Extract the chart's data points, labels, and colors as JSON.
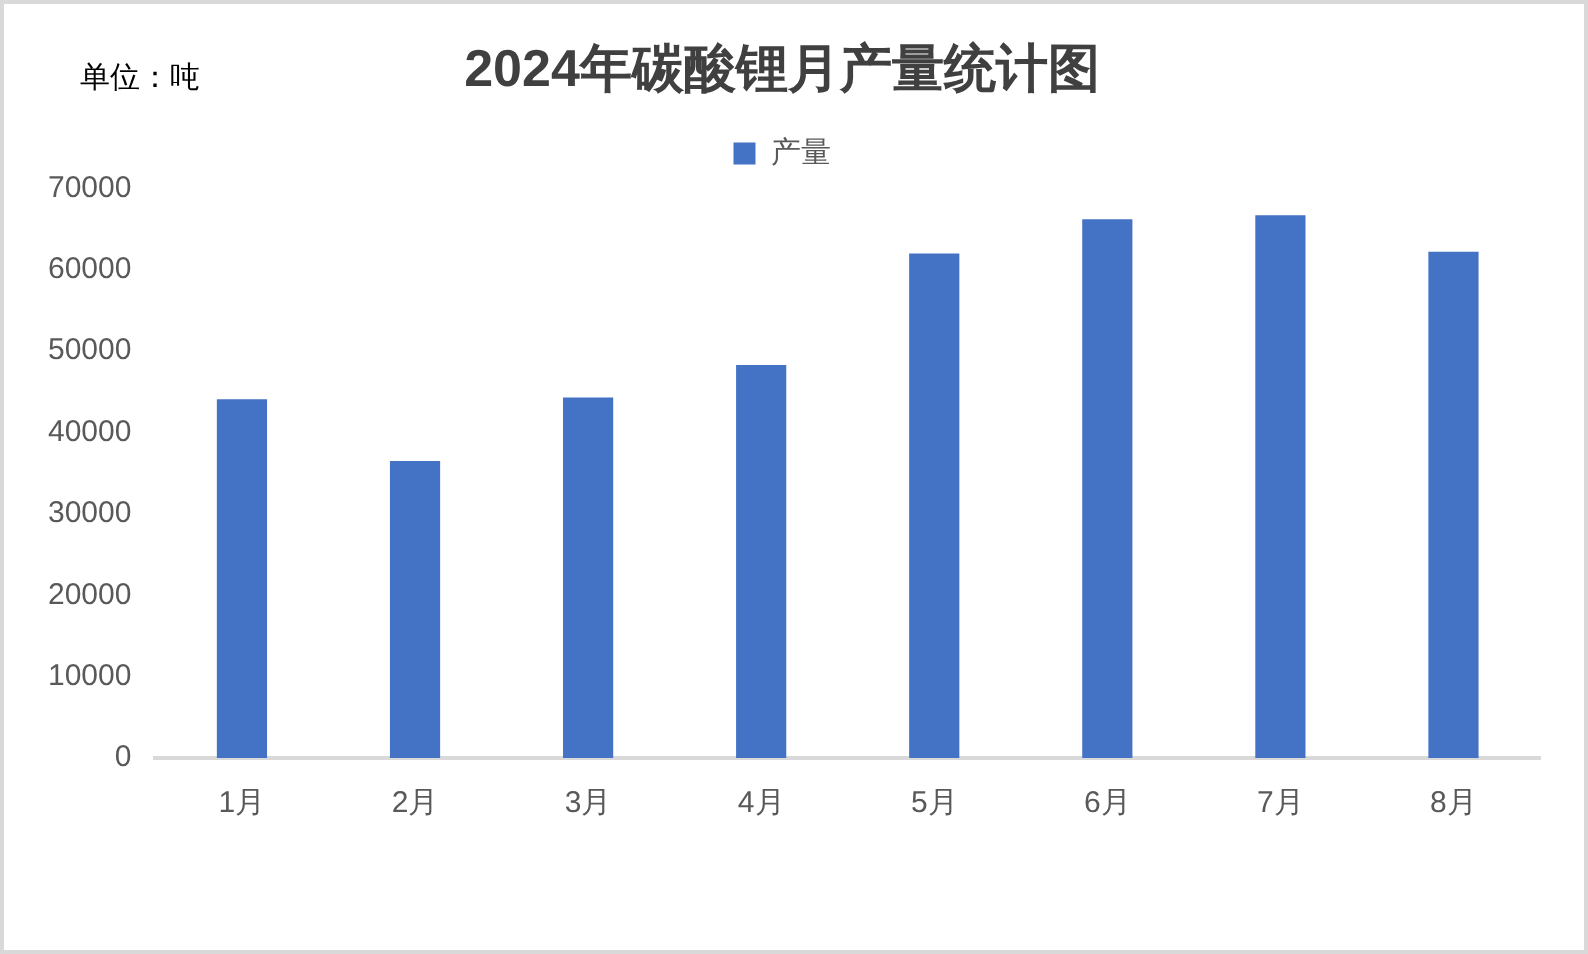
{
  "chart_data": {
    "type": "bar",
    "title": "2024年碳酸锂月产量统计图",
    "annotations": [
      "单位：吨"
    ],
    "categories": [
      "1月",
      "2月",
      "3月",
      "4月",
      "5月",
      "6月",
      "7月",
      "8月"
    ],
    "series": [
      {
        "name": "产量",
        "color": "#4472c4",
        "values": [
          44100,
          36500,
          44300,
          48300,
          62000,
          66200,
          66700,
          62200
        ]
      }
    ],
    "ylim": [
      0,
      70000
    ],
    "yticks": [
      0,
      10000,
      20000,
      30000,
      40000,
      50000,
      60000,
      70000
    ],
    "grid": false,
    "legend": "top"
  }
}
